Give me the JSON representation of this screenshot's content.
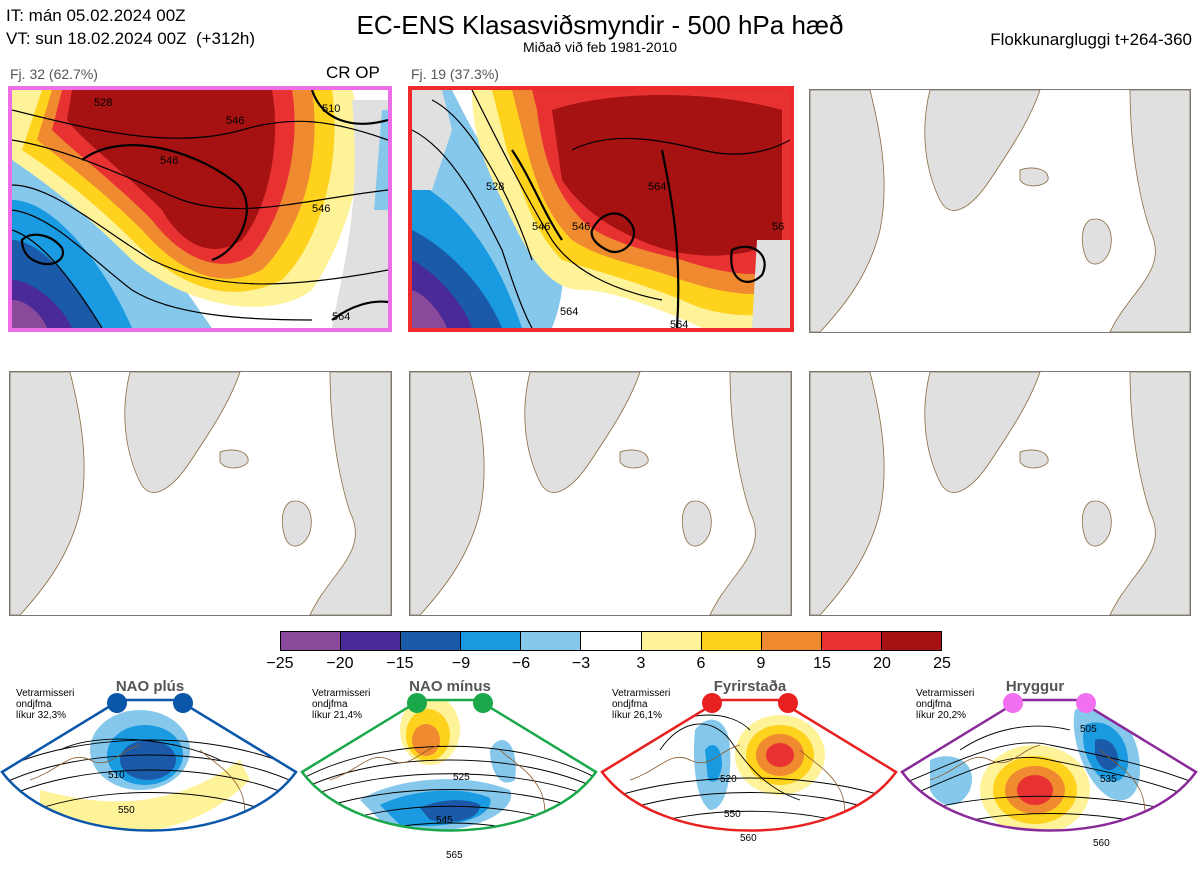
{
  "header": {
    "it": "IT: mán 05.02.2024 00Z",
    "vt": "VT: sun 18.02.2024 00Z  (+312h)",
    "title": "EC-ENS Klasasviðsmyndir - 500 hPa hæð",
    "subtitle": "Miðað við feb 1981-2010",
    "window": "Flokkunargluggi t+264-360"
  },
  "panels": [
    {
      "label": "Fj. 32 (62.7%)",
      "tag": "CR OP",
      "border_color": "#ee6ee8",
      "contours": [
        "528",
        "546",
        "510",
        "546",
        "546",
        "564"
      ]
    },
    {
      "label": "Fj. 19 (37.3%)",
      "tag": "",
      "border_color": "#ee2a2a",
      "contours": [
        "528",
        "546",
        "564",
        "546",
        "564",
        "564",
        "56"
      ]
    }
  ],
  "colorbar": {
    "ticks": [
      "−25",
      "−20",
      "−15",
      "−9",
      "−6",
      "−3",
      "3",
      "6",
      "9",
      "15",
      "20",
      "25"
    ],
    "colors": [
      "#8a4a9c",
      "#4a2a96",
      "#1a5aa8",
      "#1a9ae0",
      "#86c8ec",
      "#ffffff",
      "#fff39a",
      "#ffd21e",
      "#f08a30",
      "#e83232",
      "#a61212"
    ]
  },
  "regimes": [
    {
      "name": "NAO plús",
      "stats": "Vetrarmisseri\nondjfma\nlíkur 32,3%",
      "color": "#0a56a8",
      "labels": [
        "510",
        "550"
      ]
    },
    {
      "name": "NAO mínus",
      "stats": "Vetrarmisseri\nondjfma\nlíkur 21,4%",
      "color": "#1aa84a",
      "labels": [
        "525",
        "545",
        "565"
      ]
    },
    {
      "name": "Fyrirstaða",
      "stats": "Vetrarmisseri\nondjfma\nlíkur 26,1%",
      "color": "#e82020",
      "labels": [
        "520",
        "550",
        "560"
      ]
    },
    {
      "name": "Hryggur",
      "stats": "Vetrarmisseri\nondjfma\nlíkur 20,2%",
      "color": "#f070f0",
      "labels": [
        "505",
        "535",
        "560"
      ]
    }
  ]
}
